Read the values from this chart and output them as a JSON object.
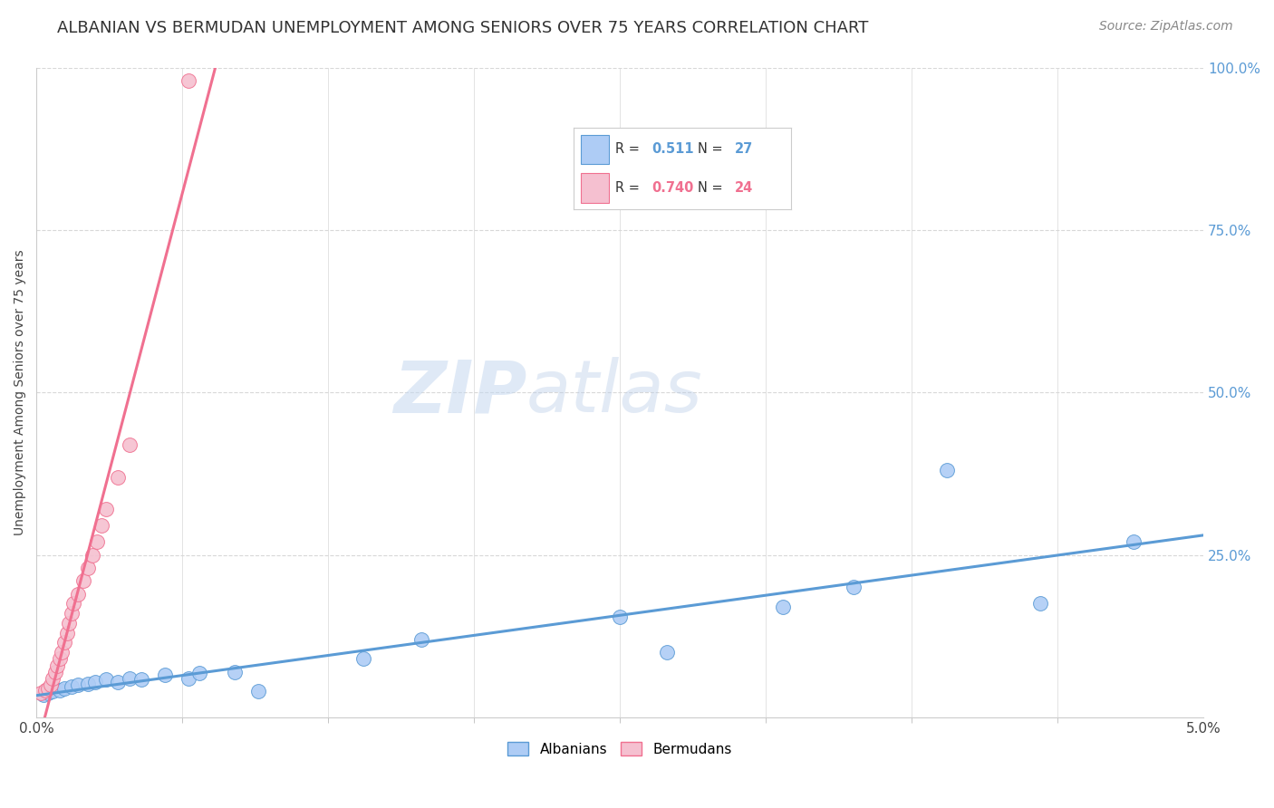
{
  "title": "ALBANIAN VS BERMUDAN UNEMPLOYMENT AMONG SENIORS OVER 75 YEARS CORRELATION CHART",
  "source": "Source: ZipAtlas.com",
  "ylabel": "Unemployment Among Seniors over 75 years",
  "xlim": [
    0.0,
    0.05
  ],
  "ylim": [
    0.0,
    1.0
  ],
  "yticks_right": [
    0.25,
    0.5,
    0.75,
    1.0
  ],
  "yticklabels_right": [
    "25.0%",
    "50.0%",
    "75.0%",
    "100.0%"
  ],
  "watermark_zip": "ZIP",
  "watermark_atlas": "atlas",
  "legend_r_albanian": "0.511",
  "legend_n_albanian": "27",
  "legend_r_bermudan": "0.740",
  "legend_n_bermudan": "24",
  "albanian_color": "#aeccf5",
  "bermudan_color": "#f5c0d0",
  "albanian_line_color": "#5b9bd5",
  "bermudan_line_color": "#f07090",
  "albanian_x": [
    0.0003,
    0.0005,
    0.0007,
    0.001,
    0.0012,
    0.0015,
    0.0018,
    0.0022,
    0.0025,
    0.003,
    0.0035,
    0.004,
    0.0045,
    0.0055,
    0.0065,
    0.007,
    0.0085,
    0.0095,
    0.014,
    0.0165,
    0.025,
    0.027,
    0.032,
    0.035,
    0.039,
    0.043,
    0.047
  ],
  "albanian_y": [
    0.035,
    0.038,
    0.04,
    0.042,
    0.045,
    0.048,
    0.05,
    0.052,
    0.055,
    0.058,
    0.055,
    0.06,
    0.058,
    0.065,
    0.06,
    0.068,
    0.07,
    0.04,
    0.09,
    0.12,
    0.155,
    0.1,
    0.17,
    0.2,
    0.38,
    0.175,
    0.27
  ],
  "bermudan_x": [
    0.0002,
    0.0004,
    0.0005,
    0.0006,
    0.0007,
    0.0008,
    0.0009,
    0.001,
    0.0011,
    0.0012,
    0.0013,
    0.0014,
    0.0015,
    0.0016,
    0.0018,
    0.002,
    0.0022,
    0.0024,
    0.0026,
    0.0028,
    0.003,
    0.0035,
    0.004,
    0.0065
  ],
  "bermudan_y": [
    0.038,
    0.042,
    0.045,
    0.05,
    0.06,
    0.07,
    0.08,
    0.09,
    0.1,
    0.115,
    0.13,
    0.145,
    0.16,
    0.175,
    0.19,
    0.21,
    0.23,
    0.25,
    0.27,
    0.295,
    0.32,
    0.37,
    0.42,
    0.98
  ],
  "background_color": "#ffffff",
  "grid_color": "#d8d8d8",
  "title_fontsize": 13,
  "source_fontsize": 10,
  "axis_label_fontsize": 10,
  "tick_fontsize": 11
}
